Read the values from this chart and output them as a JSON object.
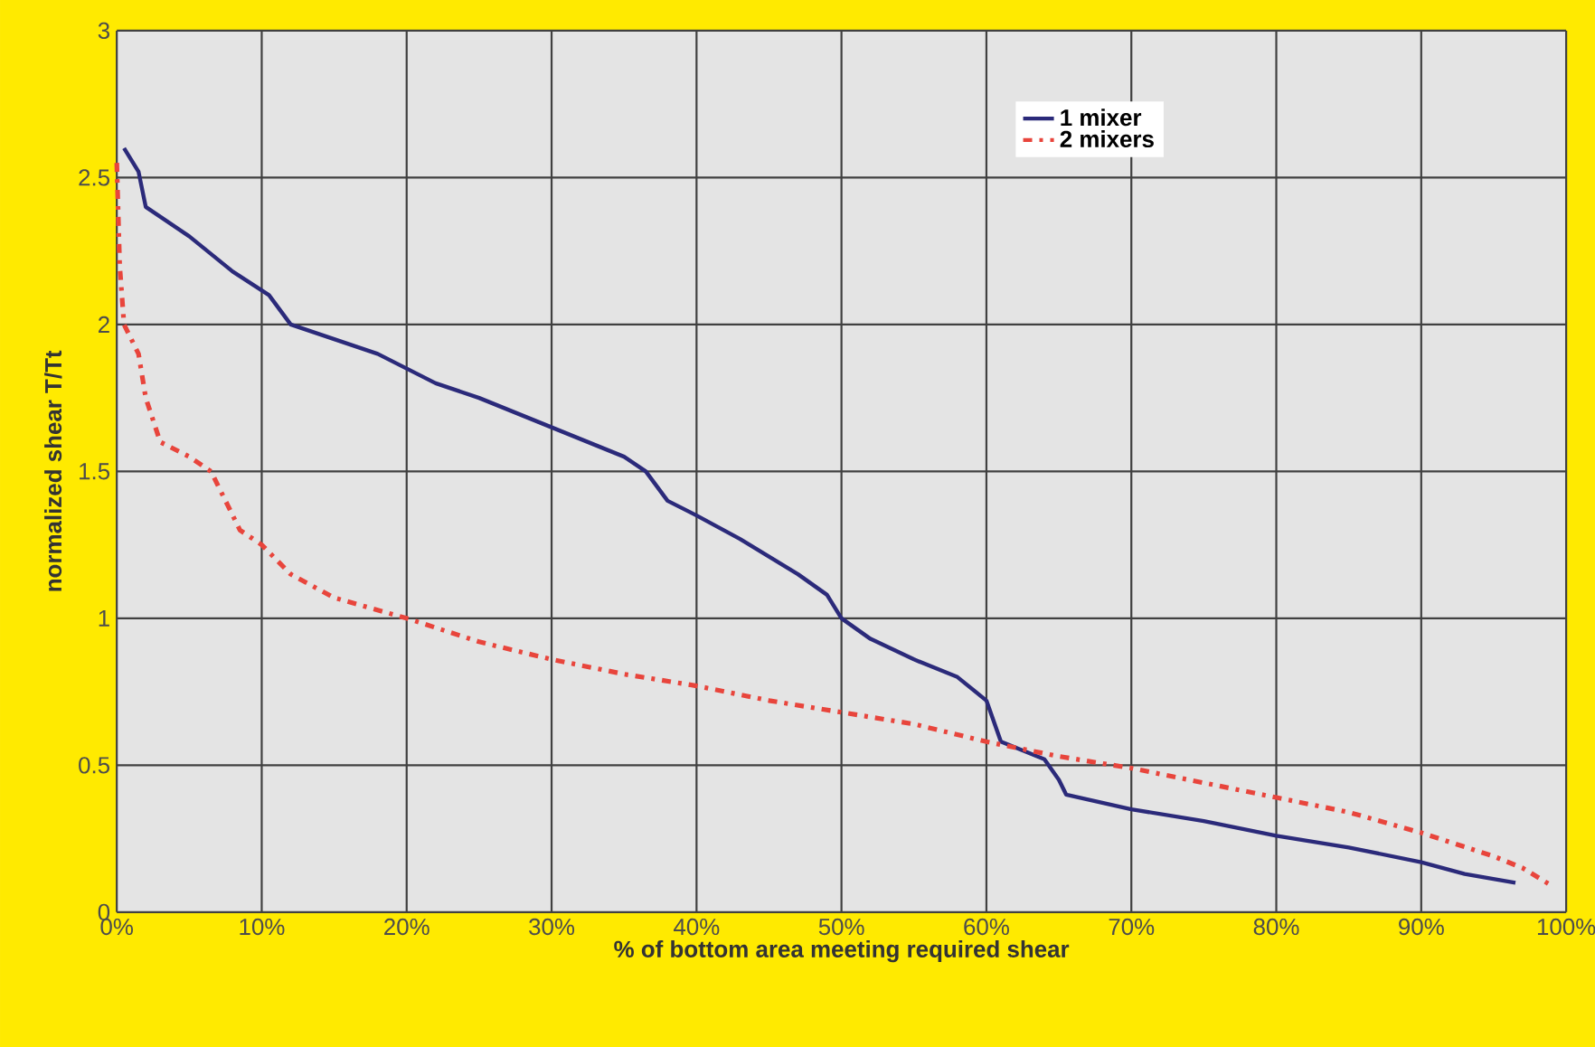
{
  "chart_data": {
    "type": "line",
    "xlabel": "% of bottom area meeting required shear",
    "ylabel": "normalized shear T/Tt",
    "xlim": [
      0,
      100
    ],
    "ylim": [
      0,
      3
    ],
    "xticks": [
      {
        "value": 0,
        "label": "0%"
      },
      {
        "value": 10,
        "label": "10%"
      },
      {
        "value": 20,
        "label": "20%"
      },
      {
        "value": 30,
        "label": "30%"
      },
      {
        "value": 40,
        "label": "40%"
      },
      {
        "value": 50,
        "label": "50%"
      },
      {
        "value": 60,
        "label": "60%"
      },
      {
        "value": 70,
        "label": "70%"
      },
      {
        "value": 80,
        "label": "80%"
      },
      {
        "value": 90,
        "label": "90%"
      },
      {
        "value": 100,
        "label": "100%"
      }
    ],
    "yticks": [
      0,
      0.5,
      1,
      1.5,
      2,
      2.5,
      3
    ],
    "grid": true,
    "legend": "top right",
    "marker": "none",
    "series": [
      {
        "name": "1 mixer",
        "color": "#2b2a7a",
        "line_style": "solid",
        "x": [
          0.5,
          1.5,
          2,
          5,
          8,
          10.5,
          12,
          15,
          18,
          20,
          22,
          25,
          30,
          35,
          36.5,
          38,
          40,
          43,
          47,
          49,
          50,
          52,
          55,
          58,
          60,
          60.5,
          61,
          64,
          65,
          65.5,
          70,
          75,
          80,
          85,
          90,
          93,
          96.5
        ],
        "values": [
          2.6,
          2.52,
          2.4,
          2.3,
          2.18,
          2.1,
          2.0,
          1.95,
          1.9,
          1.85,
          1.8,
          1.75,
          1.65,
          1.55,
          1.5,
          1.4,
          1.35,
          1.27,
          1.15,
          1.08,
          1.0,
          0.93,
          0.86,
          0.8,
          0.72,
          0.65,
          0.58,
          0.52,
          0.45,
          0.4,
          0.35,
          0.31,
          0.26,
          0.22,
          0.17,
          0.13,
          0.1
        ]
      },
      {
        "name": "2 mixers",
        "color": "#e8453c",
        "line_style": "dashed",
        "x": [
          0,
          0.2,
          0.5,
          1.5,
          2,
          3,
          5,
          6.5,
          7.5,
          8.5,
          10,
          12,
          15,
          20,
          25,
          30,
          35,
          40,
          45,
          50,
          55,
          60,
          65,
          70,
          75,
          80,
          85,
          90,
          95,
          97,
          99
        ],
        "values": [
          2.55,
          2.2,
          2.0,
          1.9,
          1.75,
          1.6,
          1.55,
          1.5,
          1.4,
          1.3,
          1.25,
          1.15,
          1.07,
          1.0,
          0.92,
          0.86,
          0.81,
          0.77,
          0.72,
          0.68,
          0.64,
          0.58,
          0.53,
          0.49,
          0.44,
          0.39,
          0.34,
          0.27,
          0.19,
          0.15,
          0.09
        ]
      }
    ]
  }
}
